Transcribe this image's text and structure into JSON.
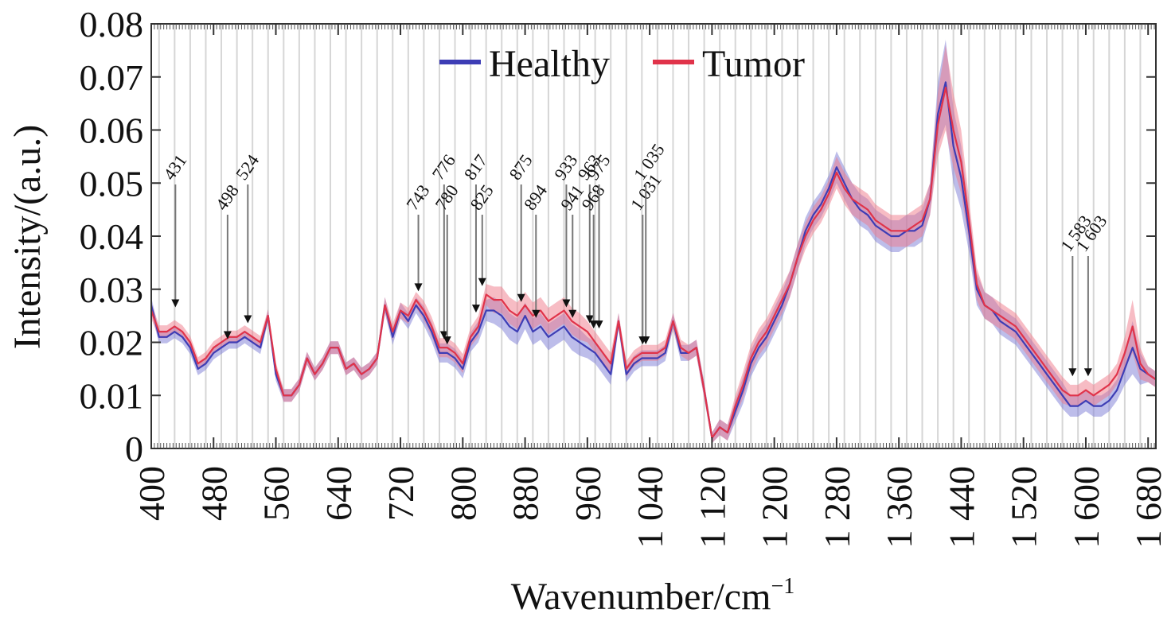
{
  "chart_data": {
    "type": "line",
    "title": "",
    "xlabel": "Wavenumber/cm",
    "xlabel_sup": "−1",
    "ylabel": "Intensity/(a.u.)",
    "xlim": [
      400,
      1690
    ],
    "ylim": [
      0,
      0.08
    ],
    "grid": "vertical light gray lines",
    "legend_position": "top-center",
    "x_ticks": [
      400,
      480,
      560,
      640,
      720,
      800,
      880,
      960,
      1040,
      1120,
      1200,
      1280,
      1360,
      1440,
      1520,
      1600,
      1680
    ],
    "x_tick_labels": [
      "400",
      "480",
      "560",
      "640",
      "720",
      "800",
      "880",
      "960",
      "1 040",
      "1 120",
      "1 200",
      "1 280",
      "1 360",
      "1 440",
      "1 520",
      "1 600",
      "1 680"
    ],
    "y_ticks": [
      0,
      0.01,
      0.02,
      0.03,
      0.04,
      0.05,
      0.06,
      0.07,
      0.08
    ],
    "y_tick_labels": [
      "0",
      "0.01",
      "0.02",
      "0.03",
      "0.04",
      "0.05",
      "0.06",
      "0.07",
      "0.08"
    ],
    "x": [
      400,
      410,
      420,
      430,
      440,
      450,
      460,
      470,
      480,
      490,
      500,
      510,
      520,
      530,
      540,
      550,
      560,
      570,
      580,
      590,
      600,
      610,
      620,
      630,
      640,
      650,
      660,
      670,
      680,
      690,
      700,
      710,
      720,
      730,
      740,
      750,
      760,
      770,
      780,
      790,
      800,
      810,
      820,
      830,
      840,
      850,
      860,
      870,
      880,
      890,
      900,
      910,
      920,
      930,
      940,
      950,
      960,
      970,
      980,
      990,
      1000,
      1010,
      1020,
      1030,
      1040,
      1050,
      1060,
      1070,
      1080,
      1090,
      1100,
      1110,
      1120,
      1130,
      1140,
      1150,
      1160,
      1170,
      1180,
      1190,
      1200,
      1210,
      1220,
      1230,
      1240,
      1250,
      1260,
      1270,
      1280,
      1290,
      1300,
      1310,
      1320,
      1330,
      1340,
      1350,
      1360,
      1370,
      1380,
      1390,
      1400,
      1410,
      1420,
      1430,
      1440,
      1450,
      1460,
      1470,
      1480,
      1490,
      1500,
      1510,
      1520,
      1530,
      1540,
      1550,
      1560,
      1570,
      1580,
      1590,
      1600,
      1610,
      1620,
      1630,
      1640,
      1650,
      1660,
      1670,
      1680,
      1690
    ],
    "series": [
      {
        "name": "Healthy",
        "color": "#3d3db5",
        "band_color": "#7b7bd6",
        "values": [
          0.027,
          0.021,
          0.021,
          0.022,
          0.021,
          0.019,
          0.015,
          0.016,
          0.018,
          0.019,
          0.02,
          0.02,
          0.021,
          0.02,
          0.019,
          0.025,
          0.014,
          0.01,
          0.01,
          0.012,
          0.017,
          0.014,
          0.016,
          0.019,
          0.019,
          0.015,
          0.016,
          0.014,
          0.015,
          0.017,
          0.027,
          0.021,
          0.026,
          0.024,
          0.027,
          0.025,
          0.022,
          0.018,
          0.018,
          0.017,
          0.015,
          0.02,
          0.022,
          0.026,
          0.026,
          0.025,
          0.023,
          0.022,
          0.025,
          0.022,
          0.023,
          0.021,
          0.022,
          0.023,
          0.021,
          0.02,
          0.019,
          0.018,
          0.016,
          0.014,
          0.024,
          0.014,
          0.016,
          0.017,
          0.017,
          0.017,
          0.018,
          0.024,
          0.018,
          0.018,
          0.019,
          0.011,
          0.002,
          0.004,
          0.003,
          0.007,
          0.011,
          0.016,
          0.019,
          0.021,
          0.024,
          0.027,
          0.031,
          0.036,
          0.041,
          0.044,
          0.046,
          0.049,
          0.053,
          0.05,
          0.047,
          0.045,
          0.044,
          0.042,
          0.041,
          0.04,
          0.04,
          0.041,
          0.041,
          0.042,
          0.047,
          0.063,
          0.069,
          0.057,
          0.051,
          0.041,
          0.03,
          0.027,
          0.026,
          0.024,
          0.023,
          0.022,
          0.02,
          0.018,
          0.016,
          0.014,
          0.012,
          0.01,
          0.008,
          0.008,
          0.009,
          0.008,
          0.008,
          0.009,
          0.011,
          0.015,
          0.019,
          0.015,
          0.014,
          0.013
        ]
      },
      {
        "name": "Tumor",
        "color": "#e0334a",
        "band_color": "#f07a8a",
        "values": [
          0.026,
          0.022,
          0.022,
          0.023,
          0.022,
          0.02,
          0.016,
          0.017,
          0.019,
          0.02,
          0.021,
          0.021,
          0.022,
          0.021,
          0.02,
          0.025,
          0.015,
          0.01,
          0.01,
          0.012,
          0.017,
          0.014,
          0.016,
          0.019,
          0.019,
          0.015,
          0.016,
          0.014,
          0.015,
          0.017,
          0.027,
          0.022,
          0.026,
          0.025,
          0.028,
          0.026,
          0.023,
          0.019,
          0.019,
          0.018,
          0.016,
          0.021,
          0.023,
          0.029,
          0.028,
          0.028,
          0.026,
          0.025,
          0.027,
          0.025,
          0.026,
          0.024,
          0.025,
          0.026,
          0.024,
          0.023,
          0.022,
          0.02,
          0.018,
          0.016,
          0.024,
          0.015,
          0.017,
          0.018,
          0.018,
          0.018,
          0.019,
          0.024,
          0.019,
          0.018,
          0.019,
          0.011,
          0.002,
          0.004,
          0.003,
          0.008,
          0.012,
          0.017,
          0.02,
          0.022,
          0.025,
          0.028,
          0.031,
          0.036,
          0.04,
          0.043,
          0.045,
          0.048,
          0.052,
          0.049,
          0.047,
          0.046,
          0.045,
          0.043,
          0.042,
          0.041,
          0.041,
          0.041,
          0.042,
          0.043,
          0.047,
          0.061,
          0.068,
          0.06,
          0.054,
          0.043,
          0.031,
          0.027,
          0.026,
          0.025,
          0.024,
          0.023,
          0.021,
          0.019,
          0.017,
          0.015,
          0.013,
          0.011,
          0.01,
          0.01,
          0.011,
          0.01,
          0.011,
          0.012,
          0.014,
          0.018,
          0.023,
          0.016,
          0.014,
          0.013
        ]
      }
    ],
    "band_halfwidth": [
      0.0015,
      0.0012,
      0.0012,
      0.0012,
      0.0012,
      0.0012,
      0.0012,
      0.0012,
      0.0012,
      0.0012,
      0.0012,
      0.0012,
      0.0012,
      0.0012,
      0.0012,
      0.0012,
      0.0012,
      0.0012,
      0.0012,
      0.0012,
      0.0012,
      0.0012,
      0.0012,
      0.0012,
      0.0012,
      0.0012,
      0.0012,
      0.0012,
      0.0012,
      0.0012,
      0.0015,
      0.0015,
      0.0015,
      0.0015,
      0.0015,
      0.0018,
      0.0018,
      0.0018,
      0.0018,
      0.0018,
      0.0018,
      0.0018,
      0.002,
      0.002,
      0.0025,
      0.0025,
      0.0025,
      0.0025,
      0.0025,
      0.0025,
      0.0025,
      0.0025,
      0.0025,
      0.0025,
      0.0025,
      0.0025,
      0.002,
      0.002,
      0.002,
      0.002,
      0.0015,
      0.0015,
      0.0015,
      0.0015,
      0.0015,
      0.0015,
      0.0015,
      0.0015,
      0.0015,
      0.0015,
      0.0015,
      0.0015,
      0.001,
      0.0015,
      0.0015,
      0.002,
      0.0025,
      0.0025,
      0.0025,
      0.0025,
      0.0025,
      0.0025,
      0.0025,
      0.0025,
      0.0025,
      0.0025,
      0.0025,
      0.0025,
      0.003,
      0.003,
      0.003,
      0.003,
      0.003,
      0.003,
      0.003,
      0.003,
      0.003,
      0.003,
      0.003,
      0.003,
      0.003,
      0.006,
      0.008,
      0.007,
      0.006,
      0.004,
      0.003,
      0.0025,
      0.0025,
      0.0025,
      0.0025,
      0.0025,
      0.0025,
      0.0025,
      0.0025,
      0.0025,
      0.0025,
      0.0025,
      0.002,
      0.002,
      0.002,
      0.002,
      0.002,
      0.002,
      0.002,
      0.003,
      0.005,
      0.003,
      0.0015,
      0.0015
    ],
    "peak_markers": [
      {
        "label": "431",
        "x": 431,
        "y": 0.026
      },
      {
        "label": "498",
        "x": 498,
        "y": 0.02
      },
      {
        "label": "524",
        "x": 524,
        "y": 0.023
      },
      {
        "label": "743",
        "x": 743,
        "y": 0.029
      },
      {
        "label": "776",
        "x": 776,
        "y": 0.02
      },
      {
        "label": "780",
        "x": 780,
        "y": 0.019
      },
      {
        "label": "817",
        "x": 817,
        "y": 0.025
      },
      {
        "label": "825",
        "x": 825,
        "y": 0.03
      },
      {
        "label": "875",
        "x": 875,
        "y": 0.027
      },
      {
        "label": "894",
        "x": 894,
        "y": 0.024
      },
      {
        "label": "933",
        "x": 933,
        "y": 0.026
      },
      {
        "label": "941",
        "x": 941,
        "y": 0.024
      },
      {
        "label": "963",
        "x": 963,
        "y": 0.023
      },
      {
        "label": "968",
        "x": 968,
        "y": 0.022
      },
      {
        "label": "975",
        "x": 975,
        "y": 0.022
      },
      {
        "label": "1 031",
        "x": 1031,
        "y": 0.019
      },
      {
        "label": "1 035",
        "x": 1035,
        "y": 0.019
      },
      {
        "label": "1 583",
        "x": 1583,
        "y": 0.013
      },
      {
        "label": "1 603",
        "x": 1603,
        "y": 0.013
      }
    ]
  }
}
